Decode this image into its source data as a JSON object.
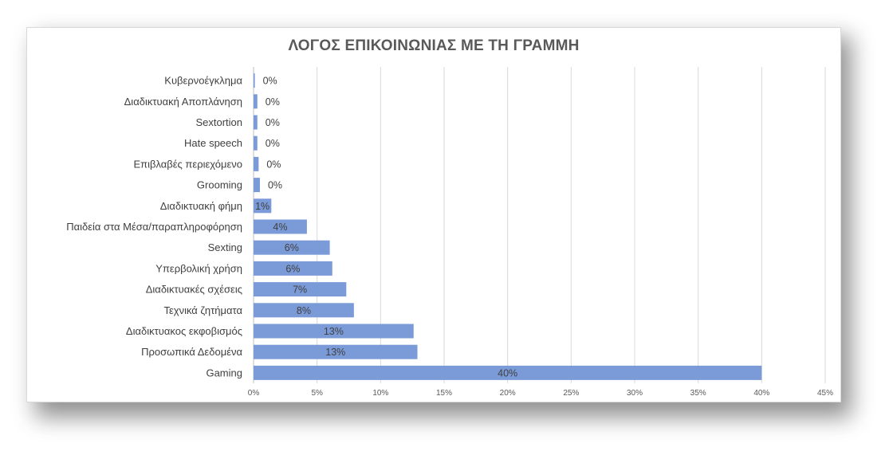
{
  "chart_data": {
    "type": "bar",
    "orientation": "horizontal",
    "title": "ΛΟΓΟΣ ΕΠΙΚΟΙΝΩΝΙΑΣ ΜΕ ΤΗ ΓΡΑΜΜΗ",
    "categories": [
      "Κυβερνοέγκλημα",
      "Διαδικτυακή Αποπλάνηση",
      "Sextortion",
      "Hate speech",
      "Επιβλαβές περιεχόμενο",
      "Grooming",
      "Διαδικτυακή φήμη",
      "Παιδεία στα Μέσα/παραπληροφόρηση",
      "Sexting",
      "Υπερβολική χρήση",
      "Διαδικτυακές σχέσεις",
      "Τεχνικά ζητήματα",
      "Διαδικτυακος εκφοβισμός",
      "Προσωπικά Δεδομένα",
      "Gaming"
    ],
    "values": [
      0.1,
      0.3,
      0.3,
      0.3,
      0.4,
      0.5,
      1.4,
      4.2,
      6.0,
      6.2,
      7.3,
      7.9,
      12.6,
      12.9,
      40.0
    ],
    "data_labels": [
      "0%",
      "0%",
      "0%",
      "0%",
      "0%",
      "0%",
      "1%",
      "4%",
      "6%",
      "6%",
      "7%",
      "8%",
      "13%",
      "13%",
      "40%"
    ],
    "x_ticks": [
      "0%",
      "5%",
      "10%",
      "15%",
      "20%",
      "25%",
      "30%",
      "35%",
      "40%",
      "45%"
    ],
    "xlim": [
      0,
      45
    ],
    "grid": "vertical",
    "legend": "none",
    "colors": {
      "bar": "#7b9bd8",
      "grid": "#d9d9d9",
      "title": "#595959"
    }
  }
}
